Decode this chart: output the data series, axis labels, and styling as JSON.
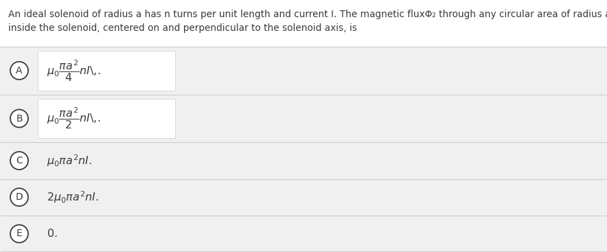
{
  "title_line1": "An ideal solenoid of radius a has n turns per unit length and current I. The magnetic fluxΦ₂ through any circular area of radius a",
  "title_line2": "inside the solenoid, centered on and perpendicular to the solenoid axis, is",
  "options": [
    {
      "label": "A",
      "formula": "$\\mu_0 \\dfrac{\\pi a^2}{4} nI$\\,.",
      "has_white_box": true
    },
    {
      "label": "B",
      "formula": "$\\mu_0 \\dfrac{\\pi a^2}{2} nI$\\,.",
      "has_white_box": true
    },
    {
      "label": "C",
      "formula": "$\\mu_0 \\pi a^2 nI.$",
      "has_white_box": false
    },
    {
      "label": "D",
      "formula": "$2\\mu_0 \\pi a^2 nI.$",
      "has_white_box": false
    },
    {
      "label": "E",
      "formula": "$0.$",
      "has_white_box": false
    }
  ],
  "page_bg": "#ffffff",
  "options_area_bg": "#f0f0f0",
  "white_box_color": "#ffffff",
  "border_color": "#cccccc",
  "text_color": "#3a3a3a",
  "title_fontsize": 9.8,
  "formula_fontsize": 11.5,
  "label_fontsize": 10
}
